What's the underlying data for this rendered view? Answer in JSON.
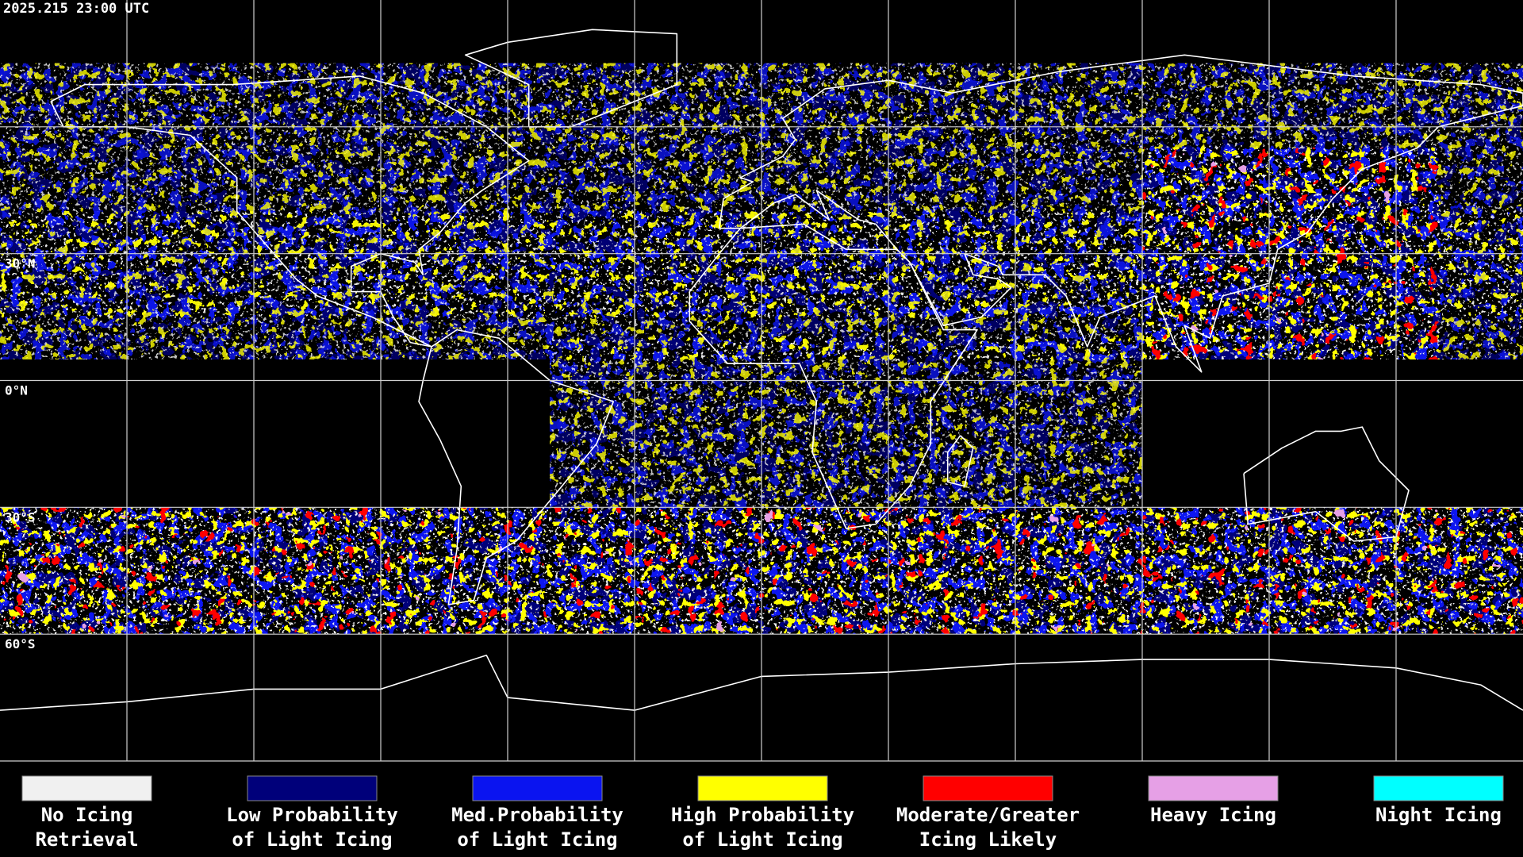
{
  "header": {
    "timestamp": "2025.215 23:00 UTC"
  },
  "map": {
    "latitude_labels": [
      "30°N",
      "0°N",
      "30°S",
      "60°S"
    ]
  },
  "legend": [
    {
      "label": [
        "No Icing",
        "Retrieval"
      ],
      "color": "#f0f0f0"
    },
    {
      "label": [
        "Low Probability",
        "of Light Icing"
      ],
      "color": "#00007a"
    },
    {
      "label": [
        "Med.Probability",
        "of Light Icing"
      ],
      "color": "#0a14f0"
    },
    {
      "label": [
        "High Probability",
        "of Light Icing"
      ],
      "color": "#ffff00"
    },
    {
      "label": [
        "Moderate/Greater",
        "Icing Likely"
      ],
      "color": "#ff0000"
    },
    {
      "label": [
        "Heavy Icing"
      ],
      "color": "#e6a0e6"
    },
    {
      "label": [
        "Night Icing"
      ],
      "color": "#00ffff"
    }
  ]
}
